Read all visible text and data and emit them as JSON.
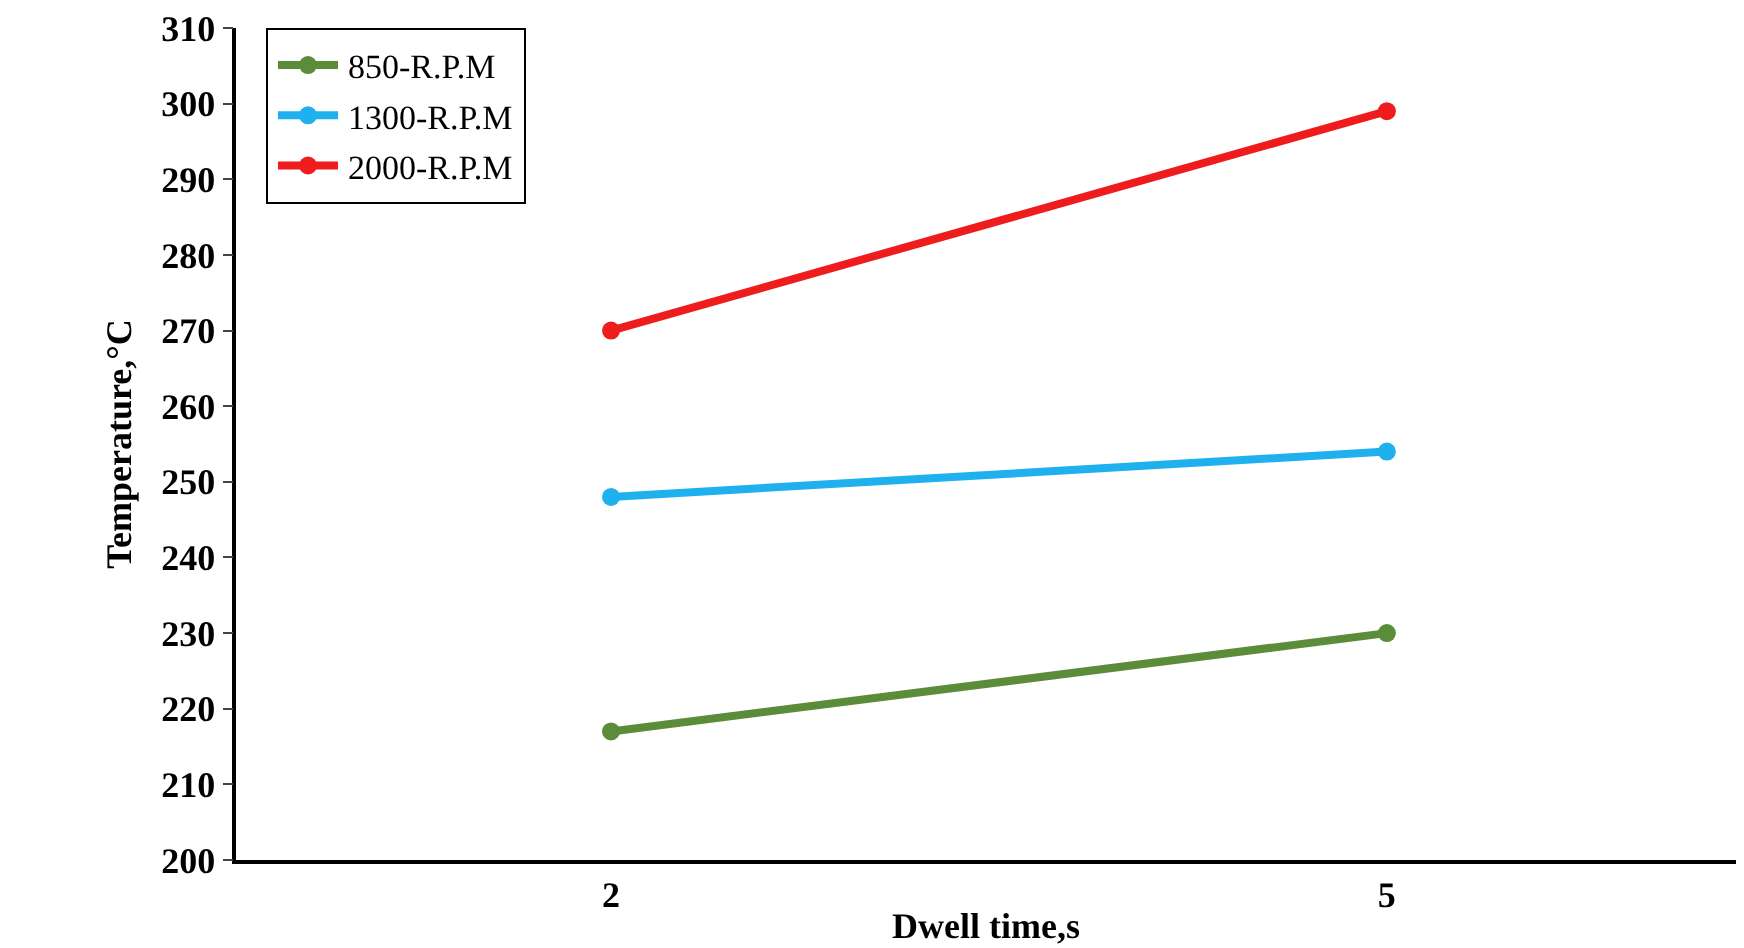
{
  "chart_data": {
    "type": "line",
    "xlabel": "Dwell time,s",
    "ylabel": "Temperature,°C",
    "x": [
      2,
      5
    ],
    "series": [
      {
        "name": "850-R.P.M",
        "color": "#5b8c3a",
        "values": [
          217,
          230
        ]
      },
      {
        "name": "1300-R.P.M",
        "color": "#1fb0ee",
        "values": [
          248,
          254
        ]
      },
      {
        "name": "2000-R.P.M",
        "color": "#ee1c1c",
        "values": [
          270,
          299
        ]
      }
    ],
    "xlim": [
      0.55,
      6.35
    ],
    "xticks": [
      2,
      5
    ],
    "ylim": [
      200,
      310
    ],
    "yticks": [
      200,
      210,
      220,
      230,
      240,
      250,
      260,
      270,
      280,
      290,
      300,
      310
    ],
    "grid": false,
    "legend": "top left",
    "marker": "circle",
    "line_style": "solid"
  }
}
